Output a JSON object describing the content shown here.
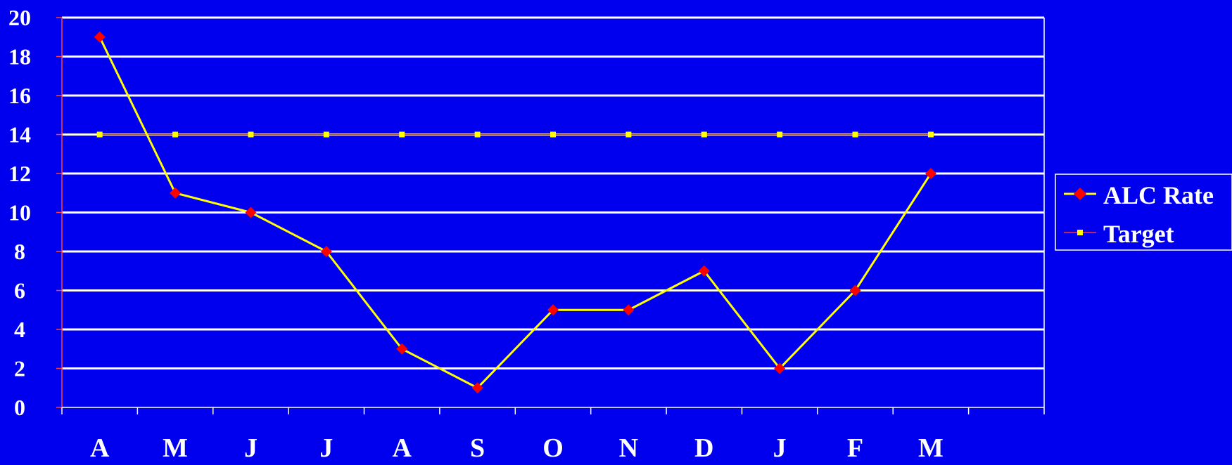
{
  "chart_data": {
    "type": "line",
    "title": "",
    "xlabel": "",
    "ylabel": "",
    "categories": [
      "A",
      "M",
      "J",
      "J",
      "A",
      "S",
      "O",
      "N",
      "D",
      "J",
      "F",
      "M"
    ],
    "ylim": [
      0,
      20
    ],
    "yticks": [
      "0",
      "2",
      "4",
      "6",
      "8",
      "10",
      "12",
      "14",
      "16",
      "18",
      "20"
    ],
    "grid": true,
    "legend_position": "right",
    "series": [
      {
        "name": "ALC Rate",
        "values": [
          19,
          11,
          10,
          8,
          3,
          1,
          5,
          5,
          7,
          2,
          6,
          12
        ],
        "line_color": "#FFFF00",
        "marker": "diamond",
        "marker_color": "#FF0000"
      },
      {
        "name": "Target",
        "values": [
          14,
          14,
          14,
          14,
          14,
          14,
          14,
          14,
          14,
          14,
          14,
          14
        ],
        "line_color": "#FF3333",
        "marker": "square",
        "marker_color": "#FFFF00"
      }
    ],
    "colors": {
      "background": "#0000EE",
      "gridline": "#FFFFFF",
      "axis": "#FF4040",
      "text": "#FFFFFF"
    }
  }
}
